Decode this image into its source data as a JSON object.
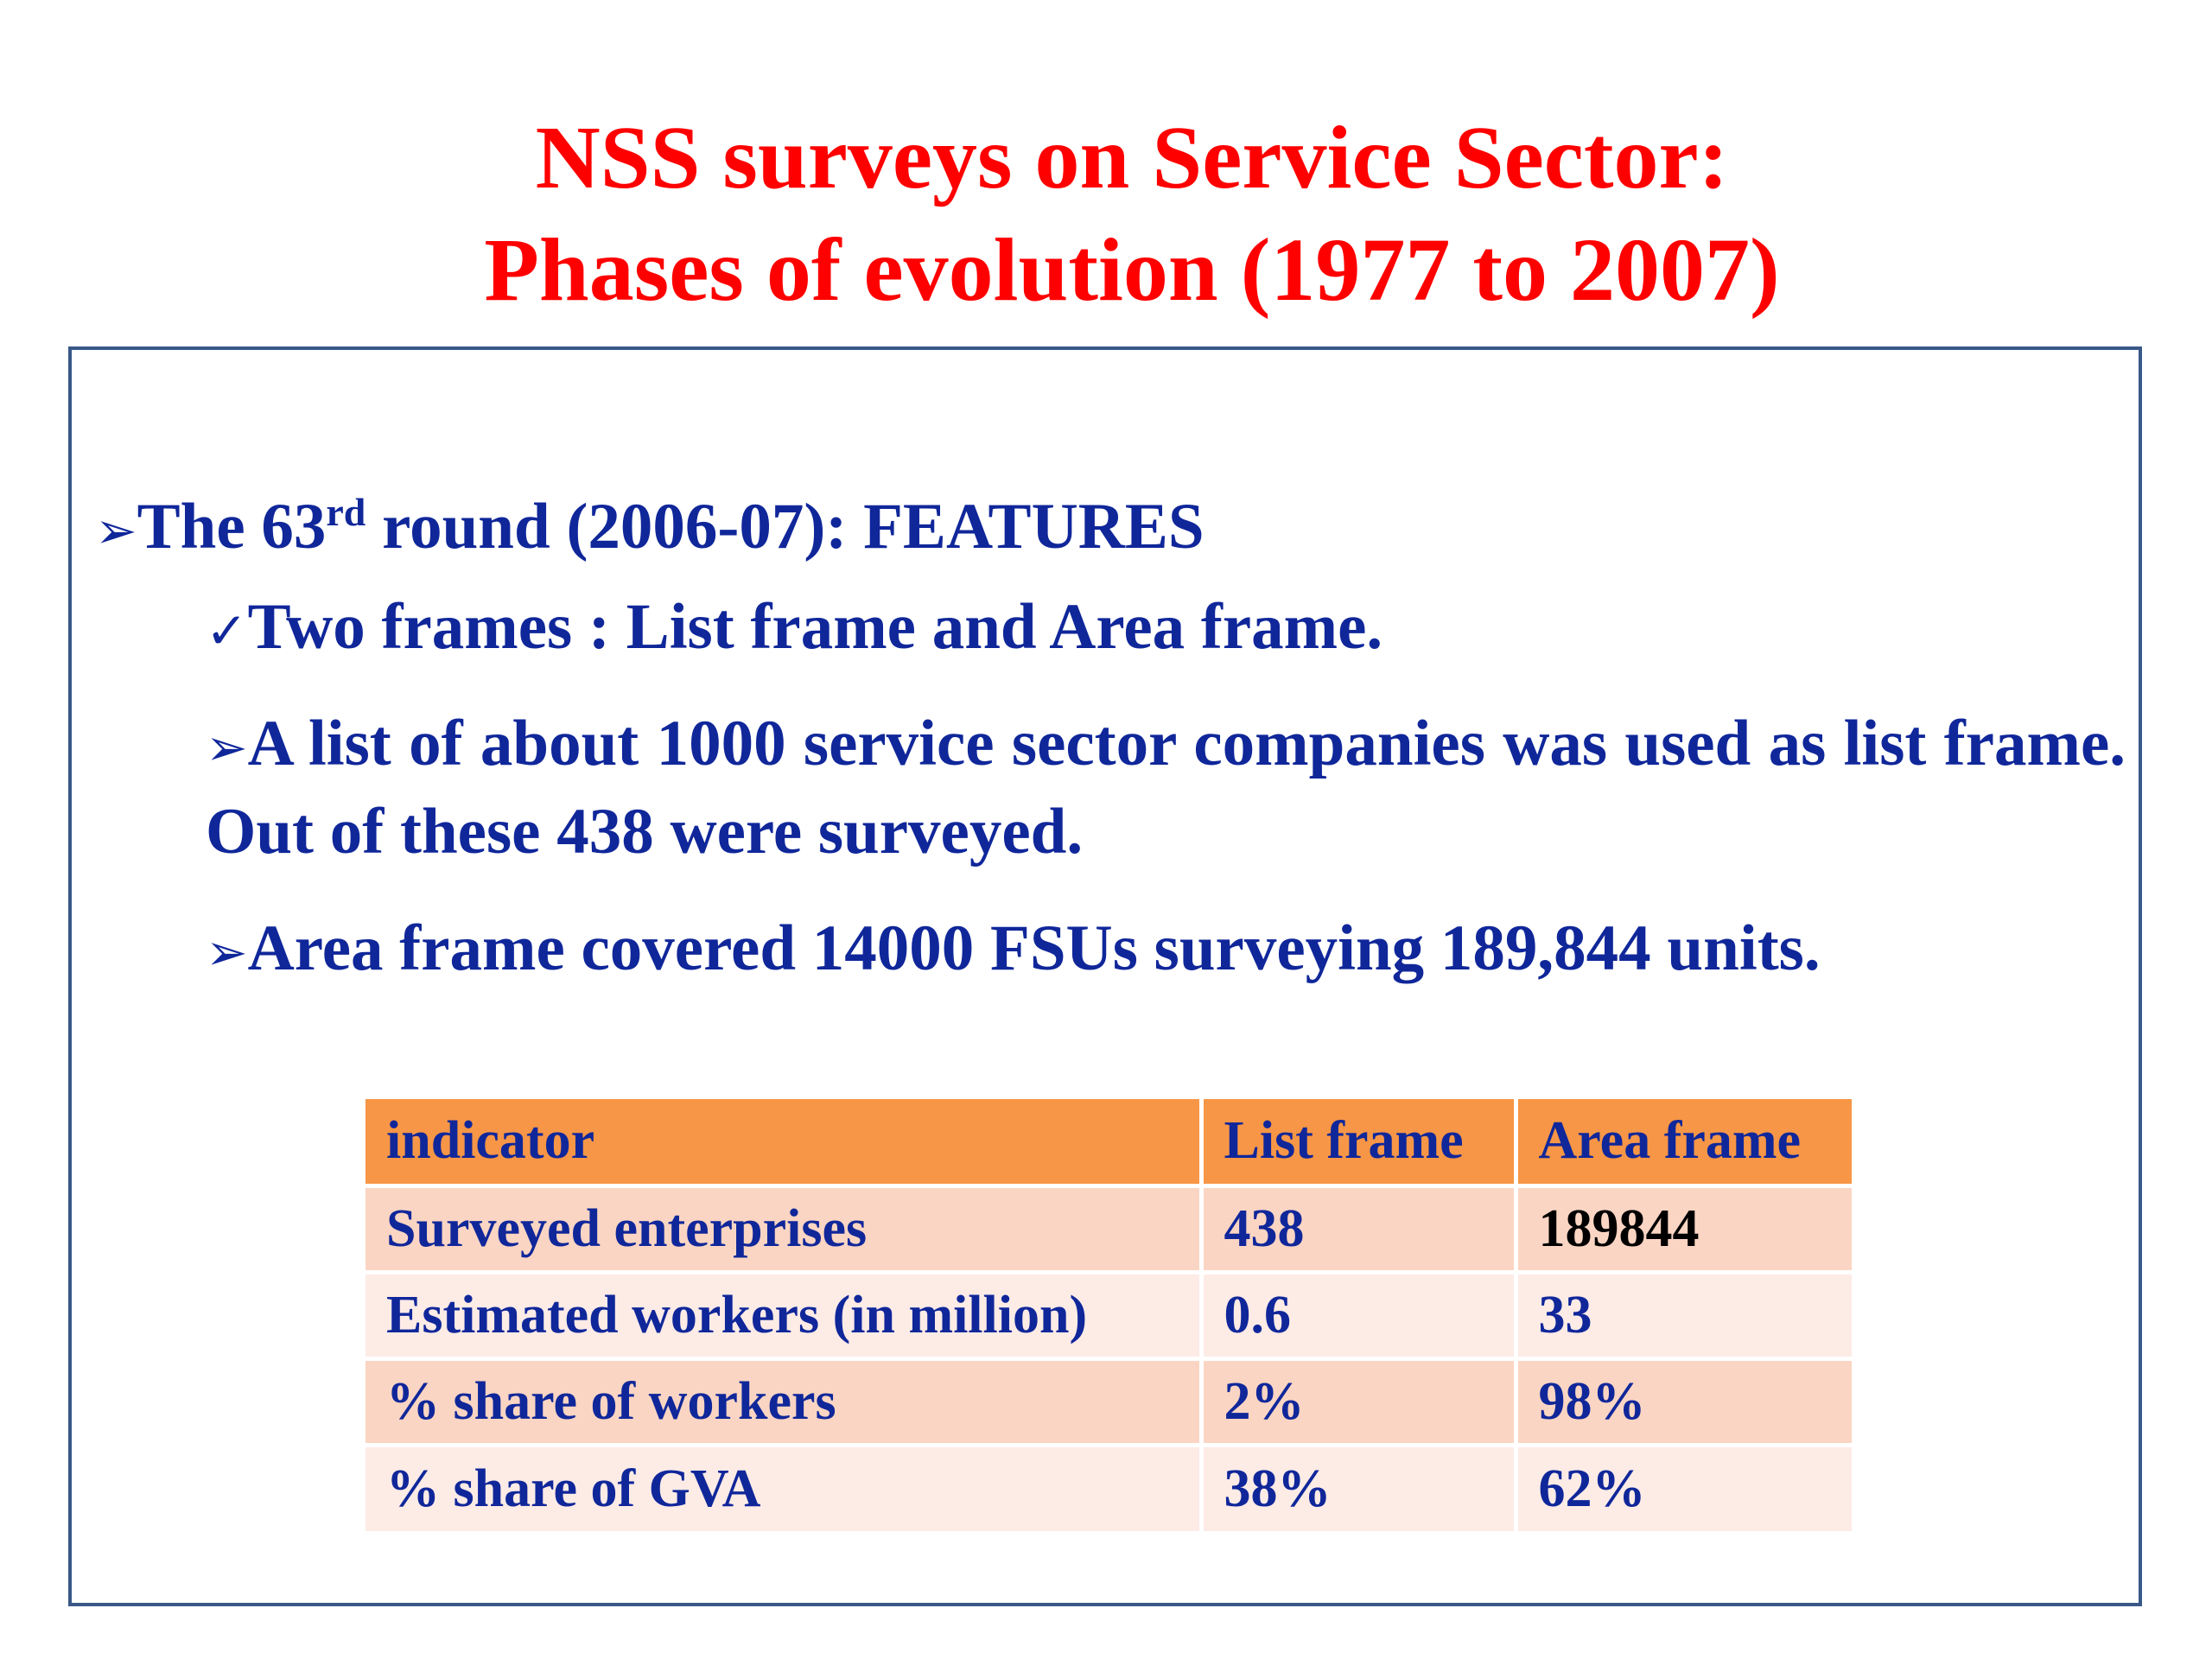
{
  "title": {
    "line1": "NSS surveys on Service Sector:",
    "line2": "Phases of evolution (1977 to 2007)"
  },
  "heading": {
    "bullet": "➢",
    "prefix": "The 63",
    "superscript": "rd",
    "suffix": " round (2006-07):  FEATURES"
  },
  "features": {
    "check_bullet": "✓",
    "frames": "Two frames : List frame and Area frame.",
    "list_bullet": "➢",
    "list_text": "A list of about 1000 service sector companies was used as list frame. Out of these 438 were surveyed.",
    "area_bullet": "➢",
    "area_text": "Area frame covered 14000 FSUs surveying 189,844 units."
  },
  "table": {
    "headers": [
      "indicator",
      "List frame",
      "Area frame"
    ],
    "rows": [
      [
        "Surveyed enterprises",
        "438",
        "189844"
      ],
      [
        "Estimated workers (in million)",
        "0.6",
        "33"
      ],
      [
        "% share of workers",
        "2%",
        "98%"
      ],
      [
        "% share of GVA",
        "38%",
        "62%"
      ]
    ]
  },
  "colors": {
    "title": "#ff0000",
    "body_text": "#10279a",
    "border": "#3a5888",
    "table_header": "#f79646",
    "table_row_odd": "#fbd5c3",
    "table_row_even": "#fdebe6"
  }
}
